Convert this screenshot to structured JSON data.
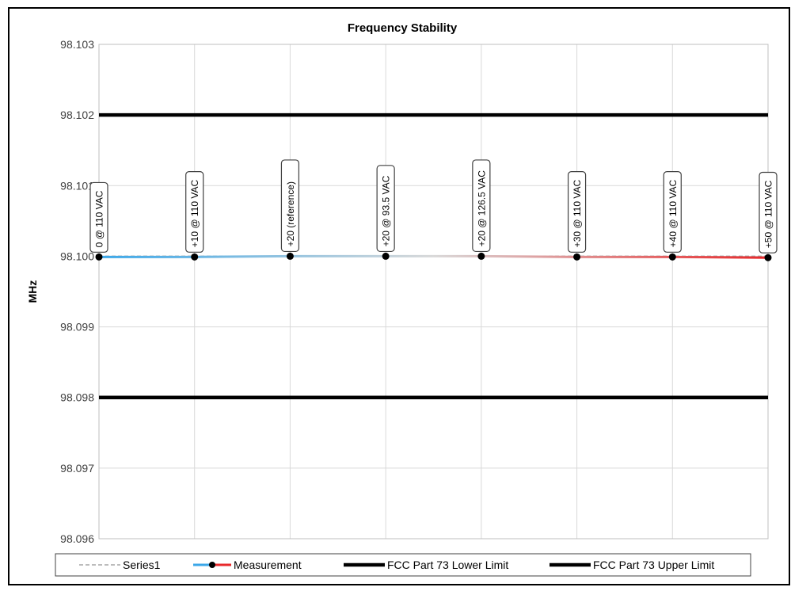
{
  "chart_data": {
    "type": "line",
    "title": "Frequency Stability",
    "ylabel": "MHz",
    "xlabel": "",
    "ylim": [
      98.096,
      98.103
    ],
    "y_ticks": [
      "98.096",
      "98.097",
      "98.098",
      "98.099",
      "98.100",
      "98.101",
      "98.102",
      "98.103"
    ],
    "grid": true,
    "legend_position": "bottom",
    "categories": [
      "0 @ 110 VAC",
      "+10 @ 110 VAC",
      "+20 (reference)",
      "+20 @ 93.5 VAC",
      "+20 @ 126.5 VAC",
      "+30 @ 110 VAC",
      "+40 @ 110 VAC",
      "+50 @ 110 VAC"
    ],
    "series": [
      {
        "name": "Series1",
        "style": "dashed",
        "color": "#a6a6a6",
        "values": [
          98.1,
          98.1,
          98.1,
          98.1,
          98.1,
          98.1,
          98.1,
          98.1
        ]
      },
      {
        "name": "Measurement",
        "style": "gradient-markers",
        "color_start": "#3ba7e8",
        "color_end": "#e8292b",
        "values": [
          98.09999,
          98.09999,
          98.1,
          98.1,
          98.1,
          98.09999,
          98.09999,
          98.09998
        ]
      },
      {
        "name": "FCC Part 73 Lower Limit",
        "style": "solid-thick",
        "color": "#000000",
        "values": [
          98.098,
          98.098,
          98.098,
          98.098,
          98.098,
          98.098,
          98.098,
          98.098
        ]
      },
      {
        "name": "FCC Part 73 Upper Limit",
        "style": "solid-thick",
        "color": "#000000",
        "values": [
          98.102,
          98.102,
          98.102,
          98.102,
          98.102,
          98.102,
          98.102,
          98.102
        ]
      }
    ]
  }
}
